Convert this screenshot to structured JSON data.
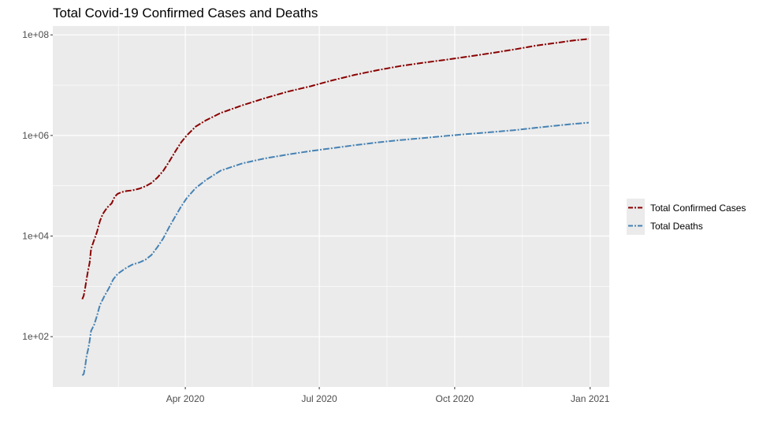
{
  "chart_data": {
    "type": "line",
    "title": "Total Covid-19 Confirmed Cases and Deaths",
    "xlabel": "",
    "ylabel": "",
    "y_scale": "log10",
    "xlim": [
      "2020-01-02",
      "2021-01-14"
    ],
    "ylim": [
      10,
      150000000
    ],
    "x_ticks": [
      "2020-04-01",
      "2020-07-01",
      "2020-10-01",
      "2021-01-01"
    ],
    "x_tick_labels": [
      "Apr 2020",
      "Jul 2020",
      "Oct 2020",
      "Jan 2021"
    ],
    "y_ticks": [
      100,
      10000,
      1000000,
      100000000
    ],
    "y_tick_labels": [
      "1e+02",
      "1e+04",
      "1e+06",
      "1e+08"
    ],
    "grid": true,
    "legend_position": "right",
    "background": "#ebebeb",
    "series": [
      {
        "name": "Total Confirmed Cases",
        "color": "#8b0000",
        "line_style": "dashdot",
        "points": [
          [
            "2020-01-22",
            555
          ],
          [
            "2020-01-23",
            654
          ],
          [
            "2020-01-24",
            941
          ],
          [
            "2020-01-25",
            1434
          ],
          [
            "2020-01-26",
            2118
          ],
          [
            "2020-01-27",
            2927
          ],
          [
            "2020-01-28",
            5578
          ],
          [
            "2020-01-30",
            8234
          ],
          [
            "2020-02-01",
            12038
          ],
          [
            "2020-02-03",
            19881
          ],
          [
            "2020-02-05",
            27636
          ],
          [
            "2020-02-08",
            37120
          ],
          [
            "2020-02-11",
            44802
          ],
          [
            "2020-02-13",
            60368
          ],
          [
            "2020-02-15",
            69032
          ],
          [
            "2020-02-18",
            75136
          ],
          [
            "2020-02-21",
            78572
          ],
          [
            "2020-02-25",
            81000
          ],
          [
            "2020-03-01",
            88000
          ],
          [
            "2020-03-05",
            98000
          ],
          [
            "2020-03-09",
            114000
          ],
          [
            "2020-03-13",
            145000
          ],
          [
            "2020-03-17",
            198000
          ],
          [
            "2020-03-21",
            300000
          ],
          [
            "2020-03-25",
            470000
          ],
          [
            "2020-03-29",
            720000
          ],
          [
            "2020-04-02",
            1000000
          ],
          [
            "2020-04-08",
            1500000
          ],
          [
            "2020-04-15",
            2000000
          ],
          [
            "2020-04-25",
            2800000
          ],
          [
            "2020-05-10",
            4000000
          ],
          [
            "2020-05-25",
            5500000
          ],
          [
            "2020-06-10",
            7500000
          ],
          [
            "2020-06-25",
            9500000
          ],
          [
            "2020-07-10",
            12500000
          ],
          [
            "2020-07-25",
            16000000
          ],
          [
            "2020-08-10",
            20000000
          ],
          [
            "2020-08-25",
            24000000
          ],
          [
            "2020-09-10",
            28000000
          ],
          [
            "2020-09-25",
            32000000
          ],
          [
            "2020-10-10",
            37000000
          ],
          [
            "2020-10-25",
            43000000
          ],
          [
            "2020-11-10",
            51000000
          ],
          [
            "2020-11-25",
            61000000
          ],
          [
            "2020-12-10",
            70000000
          ],
          [
            "2020-12-20",
            77000000
          ],
          [
            "2020-12-31",
            83000000
          ]
        ]
      },
      {
        "name": "Total Deaths",
        "color": "#4682b4",
        "line_style": "dashdot",
        "points": [
          [
            "2020-01-22",
            17
          ],
          [
            "2020-01-23",
            18
          ],
          [
            "2020-01-24",
            26
          ],
          [
            "2020-01-25",
            42
          ],
          [
            "2020-01-26",
            56
          ],
          [
            "2020-01-27",
            82
          ],
          [
            "2020-01-28",
            131
          ],
          [
            "2020-01-30",
            170
          ],
          [
            "2020-02-01",
            259
          ],
          [
            "2020-02-03",
            425
          ],
          [
            "2020-02-06",
            636
          ],
          [
            "2020-02-09",
            908
          ],
          [
            "2020-02-12",
            1370
          ],
          [
            "2020-02-15",
            1770
          ],
          [
            "2020-02-20",
            2247
          ],
          [
            "2020-02-25",
            2710
          ],
          [
            "2020-03-01",
            3000
          ],
          [
            "2020-03-05",
            3400
          ],
          [
            "2020-03-09",
            4200
          ],
          [
            "2020-03-13",
            6000
          ],
          [
            "2020-03-17",
            9000
          ],
          [
            "2020-03-21",
            15000
          ],
          [
            "2020-03-25",
            24000
          ],
          [
            "2020-03-29",
            38000
          ],
          [
            "2020-04-02",
            57000
          ],
          [
            "2020-04-08",
            90000
          ],
          [
            "2020-04-15",
            130000
          ],
          [
            "2020-04-25",
            200000
          ],
          [
            "2020-05-10",
            280000
          ],
          [
            "2020-05-25",
            350000
          ],
          [
            "2020-06-10",
            420000
          ],
          [
            "2020-06-25",
            490000
          ],
          [
            "2020-07-10",
            560000
          ],
          [
            "2020-07-25",
            640000
          ],
          [
            "2020-08-10",
            730000
          ],
          [
            "2020-08-25",
            810000
          ],
          [
            "2020-09-10",
            890000
          ],
          [
            "2020-09-25",
            980000
          ],
          [
            "2020-10-10",
            1070000
          ],
          [
            "2020-10-25",
            1160000
          ],
          [
            "2020-11-10",
            1270000
          ],
          [
            "2020-11-25",
            1420000
          ],
          [
            "2020-12-10",
            1580000
          ],
          [
            "2020-12-20",
            1690000
          ],
          [
            "2020-12-31",
            1800000
          ]
        ]
      }
    ]
  }
}
